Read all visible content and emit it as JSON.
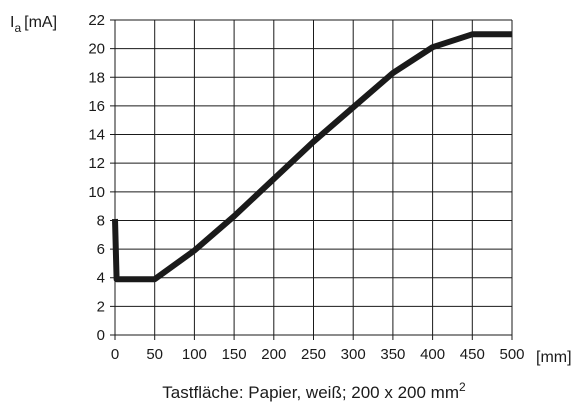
{
  "chart_data": {
    "type": "line",
    "ylabel": "I",
    "ylabel_sub": "a",
    "ylabel_unit": "[mA]",
    "xlabel": "[mm]",
    "caption": "Tastfläche: Papier, weiß; 200 x 200 mm",
    "caption_sup": "2",
    "xlim": [
      0,
      500
    ],
    "ylim": [
      0,
      22
    ],
    "x_ticks": [
      0,
      50,
      100,
      150,
      200,
      250,
      300,
      350,
      400,
      450,
      500
    ],
    "y_ticks": [
      0,
      2,
      4,
      6,
      8,
      10,
      12,
      14,
      16,
      18,
      20,
      22
    ],
    "grid": true,
    "series": [
      {
        "color": "#1a1a1a",
        "x": [
          0,
          2,
          50,
          100,
          150,
          200,
          250,
          300,
          350,
          400,
          450,
          500
        ],
        "y": [
          8.1,
          3.9,
          3.9,
          5.9,
          8.3,
          10.9,
          13.5,
          15.9,
          18.3,
          20.1,
          21.0,
          21.0
        ]
      }
    ]
  }
}
